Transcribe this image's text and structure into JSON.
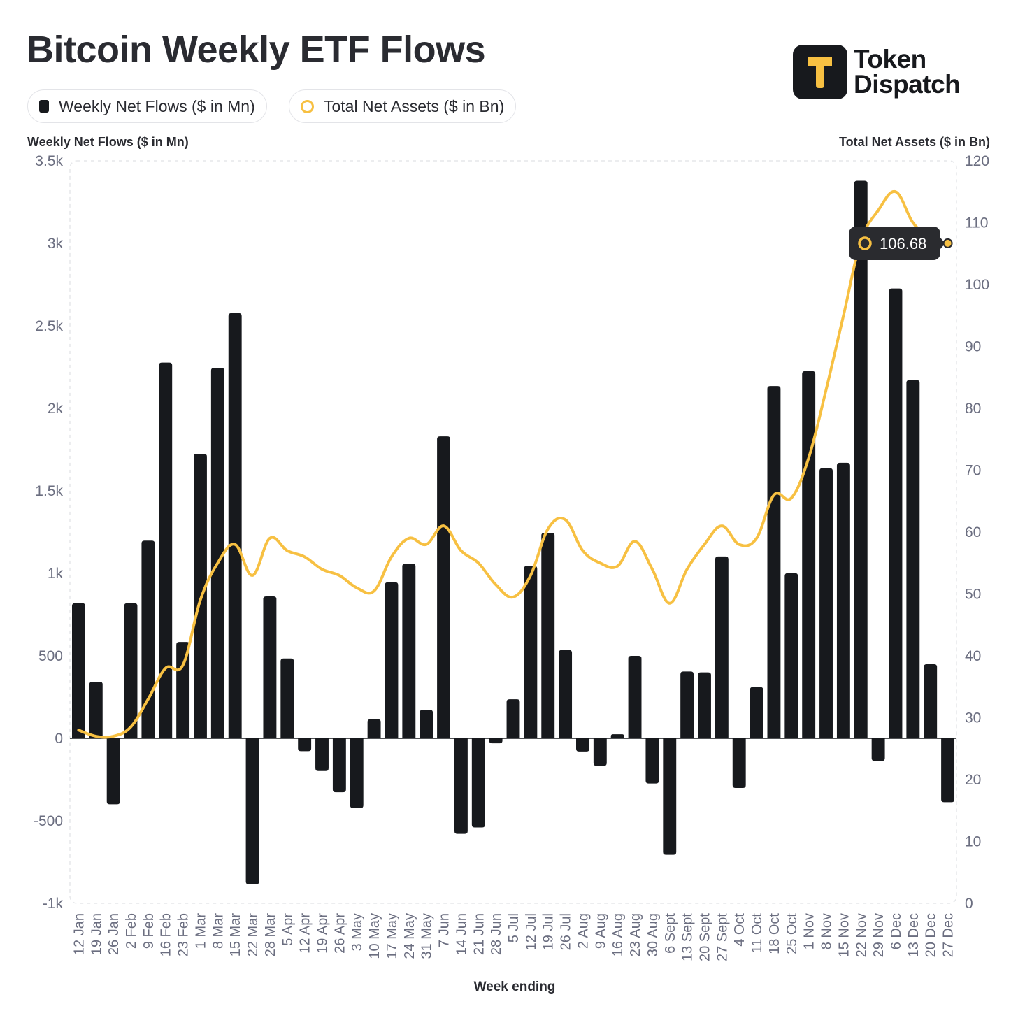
{
  "title": "Bitcoin Weekly ETF Flows",
  "brand": {
    "line1": "Token",
    "line2": "Dispatch"
  },
  "colors": {
    "bars": "#17191d",
    "line": "#f7c042",
    "axis_text": "#6b6e80",
    "grid": "#e6e7ea"
  },
  "legend": [
    {
      "label": "Weekly Net Flows ($ in Mn)",
      "marker": "square"
    },
    {
      "label": "Total Net Assets ($ in Bn)",
      "marker": "circle"
    }
  ],
  "tooltip": {
    "value": "106.68",
    "category": "27 Dec"
  },
  "chart_data": {
    "type": "bar",
    "title": "Bitcoin Weekly ETF Flows",
    "xlabel": "Week ending",
    "ylabel": "Weekly Net Flows ($ in Mn)",
    "y2label": "Total Net Assets ($ in Bn)",
    "categories": [
      "12 Jan",
      "19 Jan",
      "26 Jan",
      "2 Feb",
      "9 Feb",
      "16 Feb",
      "23 Feb",
      "1 Mar",
      "8 Mar",
      "15 Mar",
      "22 Mar",
      "28 Mar",
      "5 Apr",
      "12 Apr",
      "19 Apr",
      "26 Apr",
      "3 May",
      "10 May",
      "17 May",
      "24 May",
      "31 May",
      "7 Jun",
      "14 Jun",
      "21 Jun",
      "28 Jun",
      "5 Jul",
      "12 Jul",
      "19 Jul",
      "26 Jul",
      "2 Aug",
      "9 Aug",
      "16 Aug",
      "23 Aug",
      "30 Aug",
      "6 Sept",
      "13 Sept",
      "20 Sept",
      "27 Sept",
      "4 Oct",
      "11 Oct",
      "18 Oct",
      "25 Oct",
      "1 Nov",
      "8 Nov",
      "15 Nov",
      "22 Nov",
      "29 Nov",
      "6 Dec",
      "13 Dec",
      "20 Dec",
      "27 Dec"
    ],
    "y_ticks": [
      "-1k",
      "-500",
      "0",
      "500",
      "1k",
      "1.5k",
      "2k",
      "2.5k",
      "3k",
      "3.5k"
    ],
    "y2_ticks": [
      "0",
      "10",
      "20",
      "30",
      "40",
      "50",
      "60",
      "70",
      "80",
      "90",
      "100",
      "110",
      "120"
    ],
    "ylim": [
      -1000,
      3500
    ],
    "y2lim": [
      0,
      120
    ],
    "grid": false,
    "series": [
      {
        "name": "Weekly Net Flows ($ in Mn)",
        "type": "bar",
        "axis": "left",
        "values": [
          819,
          343,
          -400,
          819,
          1198,
          2277,
          584,
          1724,
          2245,
          2577,
          -885,
          860,
          484,
          -78,
          -198,
          -327,
          -423,
          116,
          946,
          1059,
          172,
          1830,
          -579,
          -540,
          -30,
          237,
          1045,
          1246,
          535,
          -80,
          -167,
          25,
          500,
          -274,
          -706,
          405,
          400,
          1102,
          -301,
          311,
          2135,
          1001,
          2225,
          1637,
          1670,
          3379,
          -137,
          2726,
          2171,
          449,
          -387
        ]
      },
      {
        "name": "Total Net Assets ($ in Bn)",
        "type": "line",
        "axis": "right",
        "values": [
          28,
          27,
          27,
          28.5,
          33,
          38,
          38.5,
          49,
          55,
          58,
          53,
          59,
          57,
          56,
          54,
          53,
          51,
          50.5,
          56,
          59,
          58,
          61,
          57,
          55,
          51.5,
          49.5,
          53,
          60.5,
          62,
          57,
          55,
          54.5,
          58.5,
          54,
          48.5,
          54,
          58,
          61,
          58,
          59,
          66,
          65.5,
          72,
          83,
          95,
          107,
          112,
          115,
          110,
          107.5,
          106.68
        ]
      }
    ]
  }
}
